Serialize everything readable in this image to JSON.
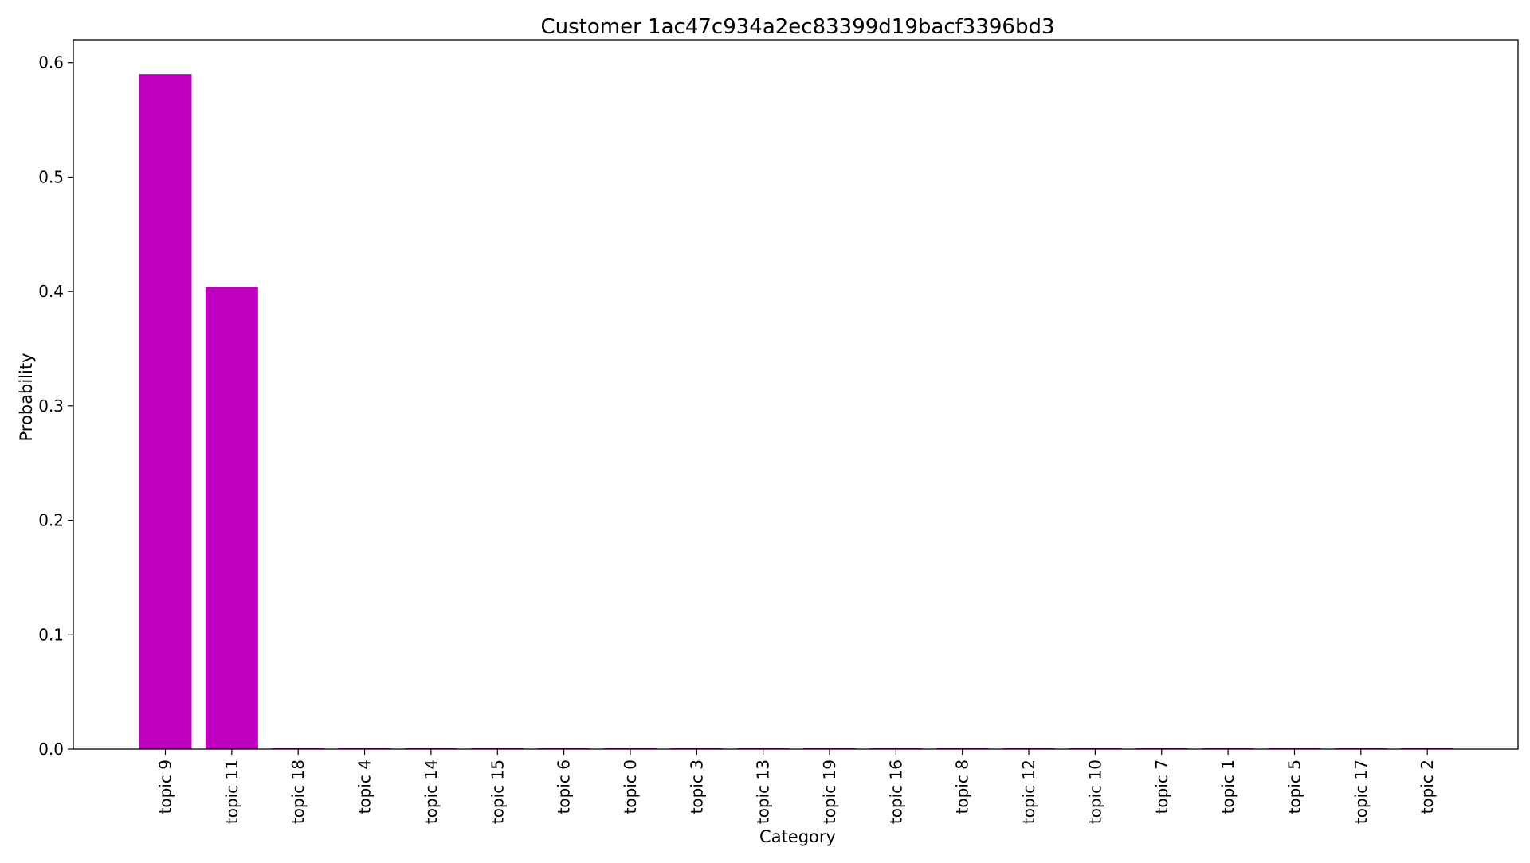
{
  "chart_data": {
    "type": "bar",
    "title": "Customer 1ac47c934a2ec83399d19bacf3396bd3",
    "xlabel": "Category",
    "ylabel": "Probability",
    "categories": [
      "topic 9",
      "topic 11",
      "topic 18",
      "topic 4",
      "topic 14",
      "topic 15",
      "topic 6",
      "topic 0",
      "topic 3",
      "topic 13",
      "topic 19",
      "topic 16",
      "topic 8",
      "topic 12",
      "topic 10",
      "topic 7",
      "topic 1",
      "topic 5",
      "topic 17",
      "topic 2"
    ],
    "values": [
      0.59,
      0.404,
      0.0006,
      0.0006,
      0.0006,
      0.0006,
      0.0006,
      0.0006,
      0.0006,
      0.0006,
      0.0006,
      0.0006,
      0.0006,
      0.0006,
      0.0006,
      0.0006,
      0.0006,
      0.0006,
      0.0006,
      0.0006
    ],
    "ylim": [
      0,
      0.62
    ],
    "yticks": [
      "0.0",
      "0.1",
      "0.2",
      "0.3",
      "0.4",
      "0.5",
      "0.6"
    ],
    "bar_color": "#bf00bf",
    "grid": false,
    "legend": "none"
  }
}
